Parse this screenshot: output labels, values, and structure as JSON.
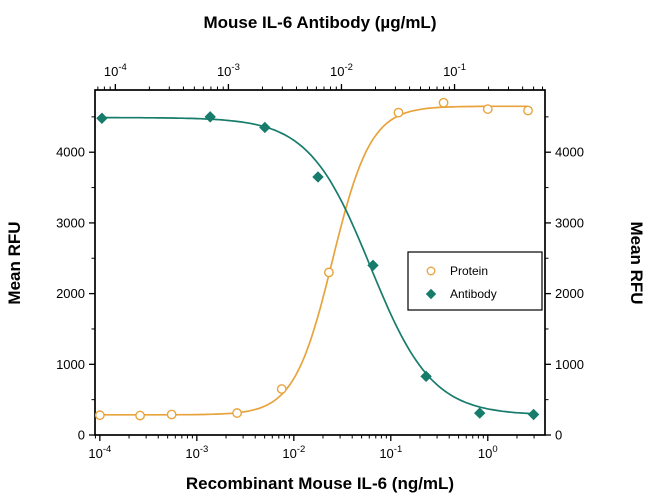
{
  "chart_data": {
    "type": "scatter",
    "layout": {
      "legend_position": "right-middle",
      "grid": false
    },
    "axes": {
      "top": {
        "title": "Mouse IL-6 Antibody (µg/mL)",
        "scale": "log10",
        "range_log10": [
          -4.18,
          -0.2
        ],
        "tick_exponents": [
          -4,
          -3,
          -2,
          -1
        ],
        "tick_label_format": "10^exp"
      },
      "bottom": {
        "title": "Recombinant Mouse IL-6 (ng/mL)",
        "scale": "log10",
        "range_log10": [
          -4.05,
          0.59
        ],
        "tick_exponents": [
          -4,
          -3,
          -2,
          -1,
          0
        ],
        "tick_label_format": "10^exp"
      },
      "left": {
        "title": "Mean RFU",
        "scale": "linear",
        "range": [
          0,
          4880
        ],
        "ticks": [
          0,
          1000,
          2000,
          3000,
          4000
        ]
      },
      "right": {
        "title": "Mean RFU",
        "scale": "linear",
        "range": [
          0,
          4880
        ],
        "ticks": [
          0,
          1000,
          2000,
          3000,
          4000
        ]
      }
    },
    "series": [
      {
        "name": "Protein",
        "x_axis": "bottom",
        "x_unit": "ng/mL",
        "marker": "open-circle",
        "color": "#E8A33C",
        "points": [
          [
            0.0001,
            280
          ],
          [
            0.00026,
            275
          ],
          [
            0.00055,
            290
          ],
          [
            0.0026,
            310
          ],
          [
            0.0075,
            650
          ],
          [
            0.023,
            2300
          ],
          [
            0.12,
            4560
          ],
          [
            0.35,
            4700
          ],
          [
            1.0,
            4610
          ],
          [
            2.6,
            4590
          ]
        ],
        "fit": {
          "model": "4PL",
          "bottom": 285,
          "top": 4650,
          "ec50": 0.025,
          "hill": 2.2
        }
      },
      {
        "name": "Antibody",
        "x_axis": "top",
        "x_unit": "µg/mL",
        "marker": "filled-diamond",
        "color": "#177C6B",
        "points": [
          [
            7.6e-05,
            4480
          ],
          [
            0.00069,
            4500
          ],
          [
            0.0021,
            4350
          ],
          [
            0.0062,
            3650
          ],
          [
            0.019,
            2400
          ],
          [
            0.056,
            830
          ],
          [
            0.167,
            310
          ],
          [
            0.5,
            290
          ]
        ],
        "fit": {
          "model": "4PL",
          "bottom": 280,
          "top": 4490,
          "ec50": 0.018,
          "hill": -1.6
        }
      }
    ],
    "legend": {
      "entries": [
        "Protein",
        "Antibody"
      ]
    }
  }
}
